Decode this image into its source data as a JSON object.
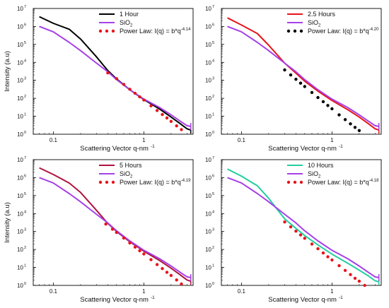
{
  "chart_data": [
    {
      "type": "line",
      "panel": "top-left",
      "xlabel": "Scattering Vector q-nm",
      "xlabel_sup": "-1",
      "ylabel": "Intensity (a.u)",
      "x_scale": "log",
      "y_scale": "log",
      "xlim": [
        0.06,
        3.5
      ],
      "ylim": [
        1,
        10000000
      ],
      "x_ticks": [
        "0.1",
        "1"
      ],
      "y_ticks": [
        "10",
        "10",
        "10",
        "10",
        "10",
        "10",
        "10",
        "10"
      ],
      "y_tick_exps": [
        "0",
        "1",
        "2",
        "3",
        "4",
        "5",
        "6",
        "7"
      ],
      "legend": {
        "placement": "top-center"
      },
      "series": [
        {
          "name": "1 Hour",
          "name_sub": "",
          "color": "#000000",
          "style": "line",
          "x": [
            0.07,
            0.1,
            0.15,
            0.2,
            0.3,
            0.4,
            0.5,
            0.7,
            1.0,
            1.5,
            2.0,
            2.5,
            3.0,
            3.3
          ],
          "y": [
            3500000,
            1500000,
            700000,
            200000,
            20000,
            3500,
            1200,
            300,
            85,
            25,
            9,
            4,
            2,
            1.7
          ]
        },
        {
          "name": "SiO",
          "name_sub": "2",
          "color": "#a640e8",
          "style": "line",
          "x": [
            0.07,
            0.1,
            0.15,
            0.2,
            0.3,
            0.4,
            0.5,
            0.7,
            1.0,
            1.5,
            2.0,
            2.5,
            3.0,
            3.3
          ],
          "y": [
            1000000,
            500000,
            130000,
            45000,
            9000,
            3000,
            1100,
            300,
            90,
            30,
            12,
            5.5,
            3,
            2.7
          ]
        },
        {
          "name": "Power Law: I(q) = b*q",
          "name_sup": "-4.14",
          "color": "#e8141b",
          "style": "dots",
          "x": [
            0.4,
            0.5,
            0.6,
            0.7,
            0.8,
            0.9,
            1.0,
            1.2,
            1.4,
            1.6,
            1.8,
            2.0,
            2.3,
            2.6
          ],
          "y": [
            2600,
            1250,
            600,
            320,
            190,
            120,
            80,
            38,
            21,
            12.5,
            8,
            5.2,
            2.9,
            1.8
          ]
        }
      ]
    },
    {
      "type": "line",
      "panel": "top-right",
      "xlabel": "Scattering Vector q-nm",
      "xlabel_sup": "-1",
      "ylabel": "",
      "x_scale": "log",
      "y_scale": "log",
      "xlim": [
        0.06,
        3.5
      ],
      "ylim": [
        1,
        10000000
      ],
      "x_ticks": [
        "0.1",
        "1"
      ],
      "y_ticks": [
        "10",
        "10",
        "10",
        "10",
        "10",
        "10",
        "10",
        "10"
      ],
      "y_tick_exps": [
        "0",
        "1",
        "2",
        "3",
        "4",
        "5",
        "6",
        "7"
      ],
      "legend": {
        "placement": "top-center"
      },
      "series": [
        {
          "name": "2.5 Hours",
          "name_sub": "",
          "color": "#e8141b",
          "style": "line",
          "x": [
            0.07,
            0.1,
            0.15,
            0.2,
            0.3,
            0.4,
            0.5,
            0.7,
            1.0,
            1.5,
            2.0,
            2.5,
            3.0,
            3.3
          ],
          "y": [
            3000000,
            1200000,
            400000,
            90000,
            9000,
            2500,
            900,
            250,
            75,
            23,
            9,
            4,
            2,
            1.7
          ]
        },
        {
          "name": "SiO",
          "name_sub": "2",
          "color": "#a640e8",
          "style": "line",
          "x": [
            0.07,
            0.1,
            0.15,
            0.2,
            0.3,
            0.4,
            0.5,
            0.7,
            1.0,
            1.5,
            2.0,
            2.5,
            3.0,
            3.3
          ],
          "y": [
            1000000,
            500000,
            130000,
            45000,
            9000,
            3000,
            1100,
            300,
            90,
            30,
            12,
            5.5,
            3,
            2.7
          ]
        },
        {
          "name": "Power Law: I(q) = b*q",
          "name_sup": "-4.20",
          "color": "#000000",
          "style": "dots",
          "x": [
            0.3,
            0.35,
            0.4,
            0.45,
            0.5,
            0.6,
            0.7,
            0.8,
            0.9,
            1.0,
            1.2,
            1.4,
            1.6,
            1.8,
            2.0
          ],
          "y": [
            3800,
            2000,
            1150,
            700,
            450,
            210,
            110,
            65,
            40,
            26,
            12,
            6.5,
            3.8,
            2.4,
            1.6
          ]
        }
      ]
    },
    {
      "type": "line",
      "panel": "bottom-left",
      "xlabel": "Scattering Vector q-nm",
      "xlabel_sup": "-1",
      "ylabel": "Intensity (a.u)",
      "x_scale": "log",
      "y_scale": "log",
      "xlim": [
        0.06,
        3.5
      ],
      "ylim": [
        1,
        10000000
      ],
      "x_ticks": [
        "0.1",
        "1"
      ],
      "y_ticks": [
        "10",
        "10",
        "10",
        "10",
        "10",
        "10",
        "10",
        "10"
      ],
      "y_tick_exps": [
        "0",
        "1",
        "2",
        "3",
        "4",
        "5",
        "6",
        "7"
      ],
      "legend": {
        "placement": "top-center"
      },
      "series": [
        {
          "name": "5 Hours",
          "name_sub": "",
          "color": "#b0123f",
          "style": "line",
          "x": [
            0.07,
            0.1,
            0.15,
            0.2,
            0.3,
            0.4,
            0.5,
            0.7,
            1.0,
            1.5,
            2.0,
            2.5,
            3.0,
            3.3
          ],
          "y": [
            3500000,
            1500000,
            500000,
            150000,
            15000,
            2800,
            1000,
            270,
            80,
            24,
            9,
            4,
            2,
            1.7
          ]
        },
        {
          "name": "SiO",
          "name_sub": "2",
          "color": "#a640e8",
          "style": "line",
          "x": [
            0.07,
            0.1,
            0.15,
            0.2,
            0.3,
            0.4,
            0.5,
            0.7,
            1.0,
            1.5,
            2.0,
            2.5,
            3.0,
            3.3
          ],
          "y": [
            1000000,
            500000,
            130000,
            45000,
            9000,
            3000,
            1100,
            300,
            90,
            30,
            12,
            5.5,
            3,
            2.7
          ]
        },
        {
          "name": "Power Law: I(q) = b*q",
          "name_sup": "-4.19",
          "color": "#e8141b",
          "style": "dots",
          "x": [
            0.38,
            0.45,
            0.5,
            0.6,
            0.7,
            0.8,
            0.9,
            1.0,
            1.2,
            1.4,
            1.6,
            1.8,
            2.0,
            2.3,
            2.6
          ],
          "y": [
            2600,
            1350,
            880,
            430,
            230,
            135,
            85,
            56,
            27,
            14.5,
            8.6,
            5.4,
            3.6,
            2.0,
            1.2
          ]
        }
      ]
    },
    {
      "type": "line",
      "panel": "bottom-right",
      "xlabel": "Scattering Vector q-nm",
      "xlabel_sup": "-1",
      "ylabel": "",
      "x_scale": "log",
      "y_scale": "log",
      "xlim": [
        0.06,
        3.5
      ],
      "ylim": [
        1,
        10000000
      ],
      "x_ticks": [
        "0.1",
        "1"
      ],
      "y_ticks": [
        "10",
        "10",
        "10",
        "10",
        "10",
        "10",
        "10",
        "10"
      ],
      "y_tick_exps": [
        "0",
        "1",
        "2",
        "3",
        "4",
        "5",
        "6",
        "7"
      ],
      "legend": {
        "placement": "top-center"
      },
      "series": [
        {
          "name": "10 Hours",
          "name_sub": "",
          "color": "#22cf9e",
          "style": "line",
          "x": [
            0.07,
            0.1,
            0.15,
            0.2,
            0.3,
            0.4,
            0.5,
            0.7,
            1.0,
            1.5,
            2.0,
            2.5,
            3.0,
            3.3
          ],
          "y": [
            3000000,
            1200000,
            350000,
            70000,
            5000,
            1500,
            600,
            180,
            55,
            17,
            7,
            3.5,
            1.8,
            1.6
          ]
        },
        {
          "name": "SiO",
          "name_sub": "2",
          "color": "#a640e8",
          "style": "line",
          "x": [
            0.07,
            0.1,
            0.15,
            0.2,
            0.3,
            0.4,
            0.5,
            0.7,
            1.0,
            1.5,
            2.0,
            2.5,
            3.0,
            3.3
          ],
          "y": [
            1000000,
            500000,
            130000,
            45000,
            9000,
            3000,
            1100,
            300,
            90,
            30,
            12,
            5.5,
            3,
            2.7
          ]
        },
        {
          "name": "Power Law: I(q) = b*q",
          "name_sup": "-4.18",
          "color": "#e8141b",
          "style": "dots",
          "x": [
            0.3,
            0.35,
            0.4,
            0.45,
            0.5,
            0.6,
            0.7,
            0.8,
            0.9,
            1.0,
            1.2,
            1.4,
            1.6,
            1.8,
            2.0,
            2.3
          ],
          "y": [
            3400,
            1800,
            1050,
            640,
            420,
            200,
            110,
            64,
            39,
            26,
            12.5,
            6.8,
            4.0,
            2.5,
            1.7,
            1.0
          ]
        }
      ]
    }
  ]
}
